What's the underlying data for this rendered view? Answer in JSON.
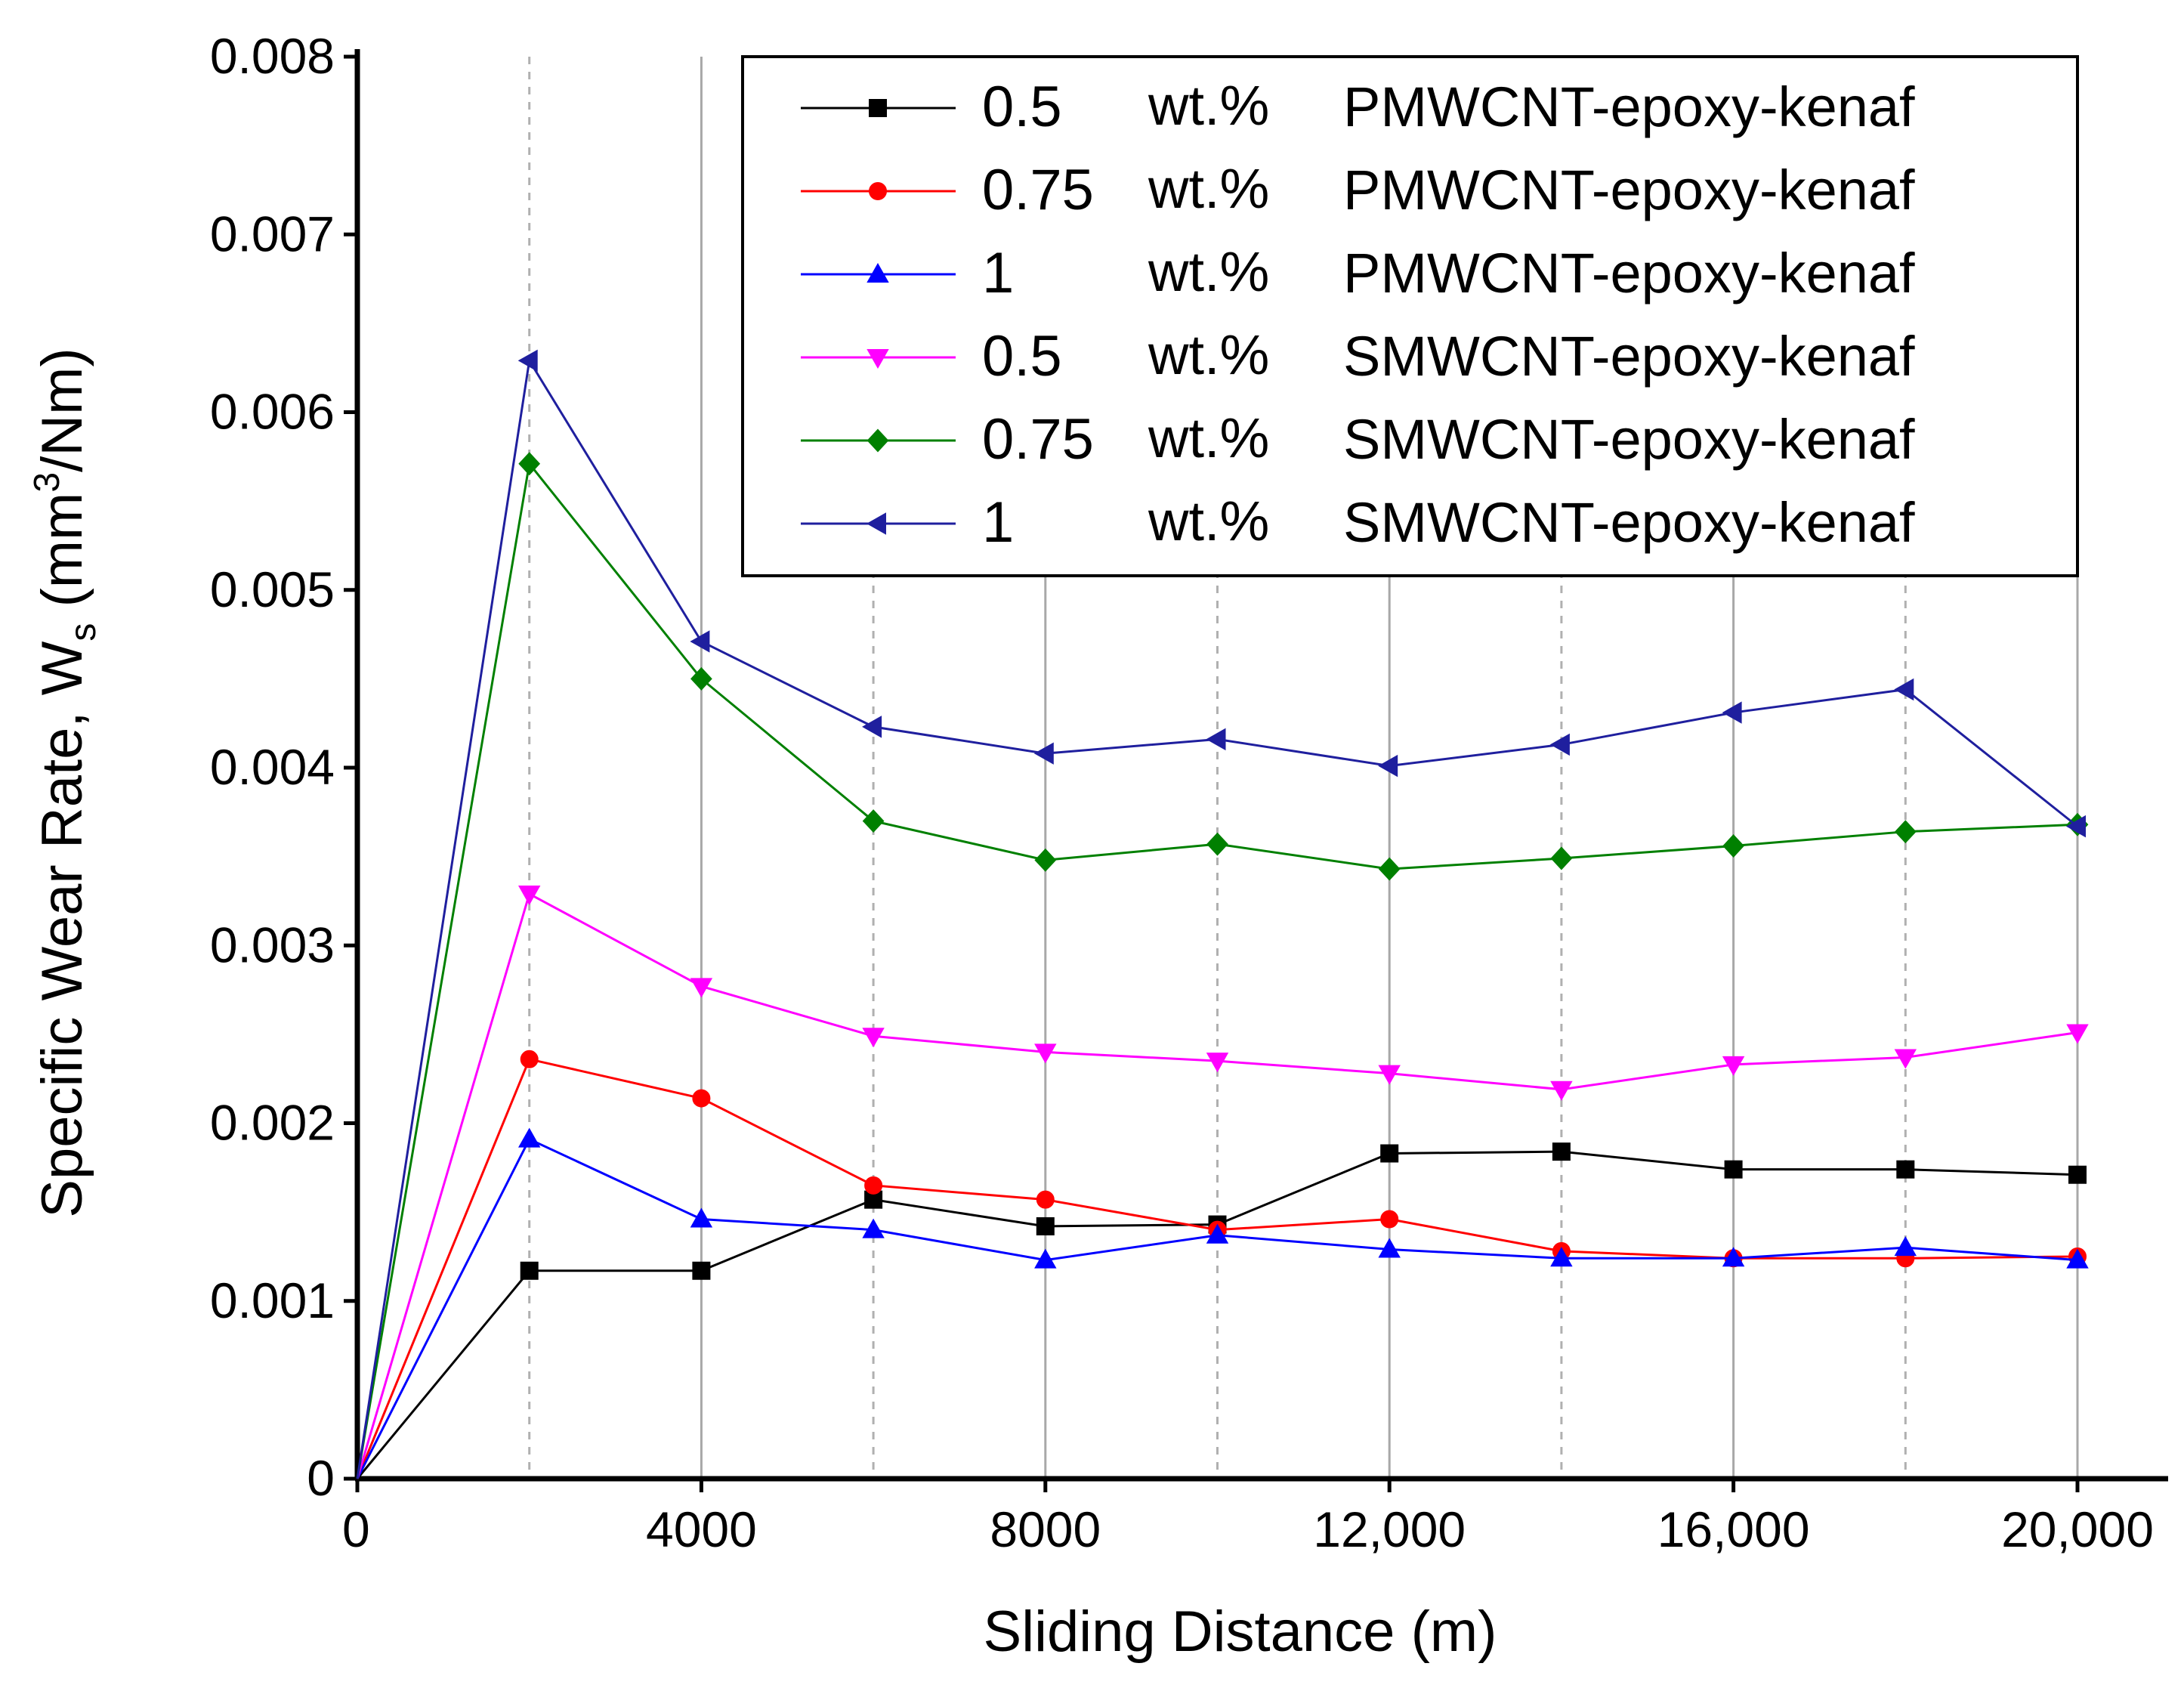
{
  "chart_data": {
    "type": "line",
    "title": "",
    "xlabel": "Sliding Distance (m)",
    "ylabel": {
      "main": "Specific Wear Rate, W",
      "subscript": "s",
      "unit_open": " (mm",
      "superscript": "3",
      "unit_close": "/Nm)"
    },
    "xlim": [
      0,
      20000
    ],
    "ylim": [
      0,
      0.008
    ],
    "x_ticks": [
      {
        "value": 0,
        "label": "0"
      },
      {
        "value": 4000,
        "label": "4000"
      },
      {
        "value": 8000,
        "label": "8000"
      },
      {
        "value": 12000,
        "label": "12,000"
      },
      {
        "value": 16000,
        "label": "16,000"
      },
      {
        "value": 20000,
        "label": "20,000"
      }
    ],
    "y_ticks": [
      {
        "value": 0,
        "label": "0"
      },
      {
        "value": 0.001,
        "label": "0.001"
      },
      {
        "value": 0.002,
        "label": "0.002"
      },
      {
        "value": 0.003,
        "label": "0.003"
      },
      {
        "value": 0.004,
        "label": "0.004"
      },
      {
        "value": 0.005,
        "label": "0.005"
      },
      {
        "value": 0.006,
        "label": "0.006"
      },
      {
        "value": 0.007,
        "label": "0.007"
      },
      {
        "value": 0.008,
        "label": "0.008"
      }
    ],
    "grid": {
      "solid_x": [
        4000,
        8000,
        12000,
        16000,
        20000
      ],
      "dashed_x": [
        2000,
        6000,
        10000,
        14000,
        18000
      ]
    },
    "legend_position": "top-right",
    "x": [
      0,
      2000,
      4000,
      6000,
      8000,
      10000,
      12000,
      14000,
      16000,
      18000,
      20000
    ],
    "series": [
      {
        "name": "0.5 wt.% PMWCNT-epoxy-kenaf",
        "legend": {
          "amount": "0.5",
          "unit": "wt.%",
          "material": "PMWCNT-epoxy-kenaf"
        },
        "color": "#000000",
        "marker": "square",
        "values": [
          0,
          0.00117,
          0.00117,
          0.00157,
          0.00142,
          0.00143,
          0.00183,
          0.00184,
          0.00174,
          0.00174,
          0.00171
        ]
      },
      {
        "name": "0.75 wt.% PMWCNT-epoxy-kenaf",
        "legend": {
          "amount": "0.75",
          "unit": "wt.%",
          "material": "PMWCNT-epoxy-kenaf"
        },
        "color": "#ff0000",
        "marker": "circle",
        "values": [
          0,
          0.00236,
          0.00214,
          0.00165,
          0.00157,
          0.0014,
          0.00146,
          0.00128,
          0.00124,
          0.00124,
          0.00125
        ]
      },
      {
        "name": "1 wt.% PMWCNT-epoxy-kenaf",
        "legend": {
          "amount": "1",
          "unit": "wt.%",
          "material": "PMWCNT-epoxy-kenaf"
        },
        "color": "#0000ff",
        "marker": "triangle-up",
        "values": [
          0,
          0.00191,
          0.00146,
          0.0014,
          0.00123,
          0.00137,
          0.00129,
          0.00124,
          0.00124,
          0.0013,
          0.00123
        ]
      },
      {
        "name": "0.5 wt.% SMWCNT-epoxy-kenaf",
        "legend": {
          "amount": "0.5",
          "unit": "wt.%",
          "material": "SMWCNT-epoxy-kenaf"
        },
        "color": "#ff00ff",
        "marker": "triangle-down",
        "values": [
          0,
          0.00329,
          0.00277,
          0.00249,
          0.0024,
          0.00235,
          0.00228,
          0.00219,
          0.00233,
          0.00237,
          0.00251
        ]
      },
      {
        "name": "0.75 wt.% SMWCNT-epoxy-kenaf",
        "legend": {
          "amount": "0.75",
          "unit": "wt.%",
          "material": "SMWCNT-epoxy-kenaf"
        },
        "color": "#008000",
        "marker": "diamond",
        "values": [
          0,
          0.00571,
          0.0045,
          0.0037,
          0.00348,
          0.00357,
          0.00343,
          0.00349,
          0.00356,
          0.00364,
          0.00368
        ]
      },
      {
        "name": "1 wt.% SMWCNT-epoxy-kenaf",
        "legend": {
          "amount": "1",
          "unit": "wt.%",
          "material": "SMWCNT-epoxy-kenaf"
        },
        "color": "#1f1f9e",
        "marker": "triangle-left",
        "values": [
          0,
          0.00629,
          0.00471,
          0.00423,
          0.00408,
          0.00416,
          0.00401,
          0.00413,
          0.00431,
          0.00444,
          0.00367
        ]
      }
    ]
  }
}
